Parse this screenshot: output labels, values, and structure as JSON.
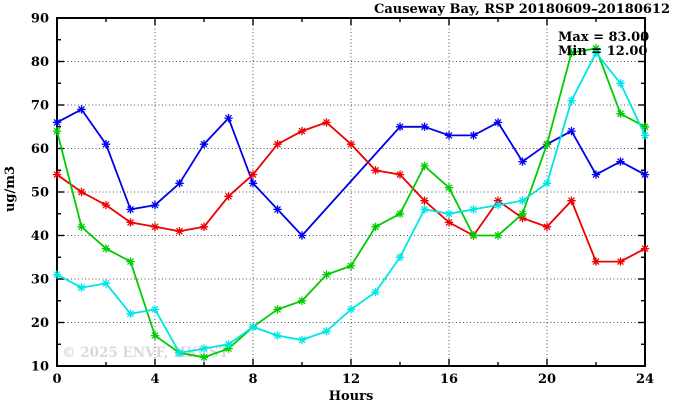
{
  "chart": {
    "title": "Causeway Bay, RSP 20180609–20180612",
    "xlabel": "Hours",
    "ylabel": "ug/m3",
    "annotations": {
      "max": "Max = 83.00",
      "min": "Min = 12.00"
    },
    "watermark": "© 2025 ENVF, HKUST"
  },
  "chart_data": {
    "type": "line",
    "title": "Causeway Bay, RSP 20180609–20180612",
    "xlabel": "Hours",
    "ylabel": "ug/m3",
    "xlim": [
      0,
      24
    ],
    "ylim": [
      10,
      90
    ],
    "xticks": [
      0,
      4,
      8,
      12,
      16,
      20,
      24
    ],
    "x_minor_ticks": [
      2,
      6,
      10,
      14,
      18,
      22
    ],
    "yticks": [
      10,
      20,
      30,
      40,
      50,
      60,
      70,
      80,
      90
    ],
    "y_minor_ticks": [
      15,
      25,
      35,
      45,
      55,
      65,
      75,
      85
    ],
    "grid_x": [
      4,
      8,
      12,
      16,
      20
    ],
    "grid_y": [
      20,
      30,
      40,
      50,
      60,
      70,
      80
    ],
    "grid": true,
    "legend_position": "none",
    "marker": "asterisk",
    "annotations": [
      {
        "text": "Max = 83.00"
      },
      {
        "text": "Min = 12.00"
      }
    ],
    "x": [
      0,
      1,
      2,
      3,
      4,
      5,
      6,
      7,
      8,
      9,
      10,
      11,
      12,
      13,
      14,
      15,
      16,
      17,
      18,
      19,
      20,
      21,
      22,
      23,
      24
    ],
    "series": [
      {
        "name": "series-blue",
        "color": "#0000ee",
        "values": [
          66,
          69,
          61,
          46,
          47,
          52,
          61,
          67,
          52,
          46,
          40,
          null,
          null,
          null,
          65,
          65,
          63,
          63,
          66,
          57,
          61,
          64,
          54,
          57,
          54
        ]
      },
      {
        "name": "series-red",
        "color": "#ee0000",
        "values": [
          54,
          50,
          47,
          43,
          42,
          41,
          42,
          49,
          54,
          61,
          64,
          66,
          61,
          55,
          54,
          48,
          43,
          40,
          48,
          44,
          42,
          48,
          34,
          34,
          37
        ]
      },
      {
        "name": "series-green",
        "color": "#00cc00",
        "values": [
          64,
          42,
          37,
          34,
          17,
          13,
          12,
          14,
          19,
          23,
          25,
          31,
          33,
          42,
          45,
          56,
          51,
          40,
          40,
          45,
          61,
          82,
          83,
          68,
          65
        ]
      },
      {
        "name": "series-cyan",
        "color": "#00e5e5",
        "values": [
          31,
          28,
          29,
          22,
          23,
          13,
          14,
          15,
          19,
          17,
          16,
          18,
          23,
          27,
          35,
          46,
          45,
          46,
          47,
          48,
          52,
          71,
          82,
          75,
          63
        ]
      }
    ]
  }
}
